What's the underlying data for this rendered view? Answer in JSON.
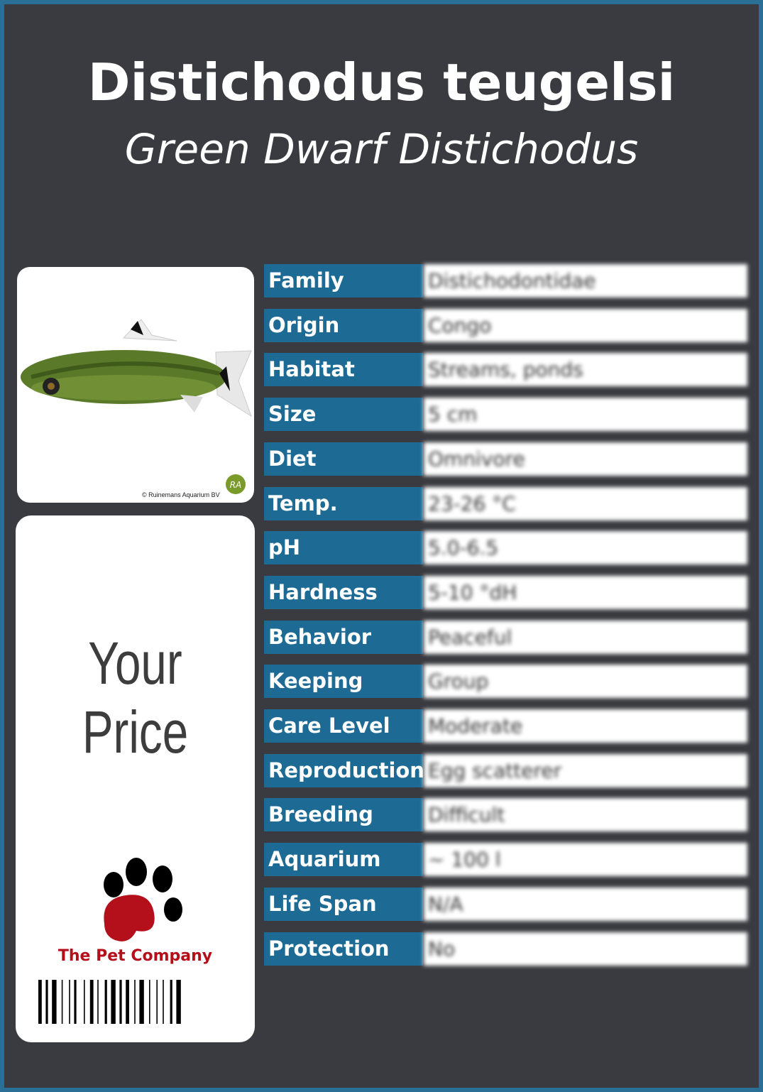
{
  "header": {
    "title": "Distichodus teugelsi",
    "subtitle": "Green Dwarf Distichodus"
  },
  "photo": {
    "credit": "© Ruinemans Aquarium BV"
  },
  "price": {
    "label": "Your Price",
    "brand": "The Pet Company"
  },
  "table": {
    "rows": [
      [
        "Family",
        "Distichodontidae"
      ],
      [
        "Origin",
        "Congo"
      ],
      [
        "Habitat",
        "Streams, ponds"
      ],
      [
        "Size",
        "5 cm"
      ],
      [
        "Diet",
        "Omnivore"
      ],
      [
        "Temp.",
        "23-26 °C"
      ],
      [
        "pH",
        "5.0-6.5"
      ],
      [
        "Hardness",
        "5-10 °dH"
      ],
      [
        "Behavior",
        "Peaceful"
      ],
      [
        "Keeping",
        "Group"
      ],
      [
        "Care Level",
        "Moderate"
      ],
      [
        "Reproduction",
        "Egg scatterer"
      ],
      [
        "Breeding",
        "Difficult"
      ],
      [
        "Aquarium",
        "~ 100 l"
      ],
      [
        "Life Span",
        "N/A"
      ],
      [
        "Protection",
        "No"
      ]
    ]
  }
}
